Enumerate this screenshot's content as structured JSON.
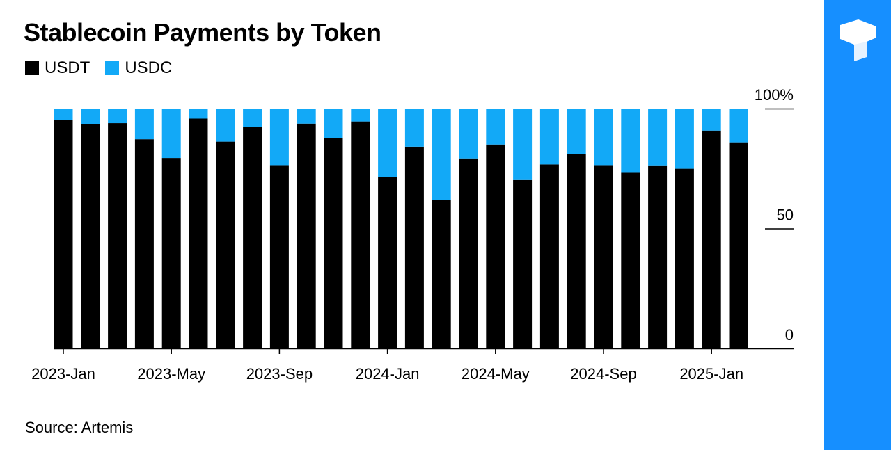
{
  "colors": {
    "usdt": "#000000",
    "usdc": "#12A9F7",
    "brand": "#168FFF"
  },
  "chart_data": {
    "type": "bar",
    "stacked": true,
    "title": "Stablecoin Payments by Token",
    "legend": [
      "USDT",
      "USDC"
    ],
    "legend_placement": "top-left",
    "categories": [
      "2023-Jan",
      "2023-Feb",
      "2023-Mar",
      "2023-Apr",
      "2023-May",
      "2023-Jun",
      "2023-Jul",
      "2023-Aug",
      "2023-Sep",
      "2023-Oct",
      "2023-Nov",
      "2023-Dec",
      "2024-Jan",
      "2024-Feb",
      "2024-Mar",
      "2024-Apr",
      "2024-May",
      "2024-Jun",
      "2024-Jul",
      "2024-Aug",
      "2024-Sep",
      "2024-Oct",
      "2024-Nov",
      "2024-Dec",
      "2025-Jan",
      "2025-Feb"
    ],
    "series": [
      {
        "name": "USDT",
        "values": [
          95.3,
          93.4,
          93.9,
          87.2,
          79.4,
          95.8,
          86.2,
          92.4,
          76.4,
          93.7,
          87.6,
          94.6,
          71.4,
          84.1,
          61.9,
          79.2,
          85,
          70.2,
          76.7,
          81,
          76.4,
          73.2,
          76.3,
          74.9,
          90.8,
          85.9
        ]
      },
      {
        "name": "USDC",
        "values": [
          4.7,
          6.6,
          6.1,
          12.8,
          20.6,
          4.2,
          13.8,
          7.6,
          23.6,
          6.3,
          12.4,
          5.4,
          28.6,
          15.9,
          38.1,
          20.8,
          15,
          29.8,
          23.3,
          19,
          23.6,
          26.8,
          23.7,
          25.1,
          9.2,
          14.1
        ]
      }
    ],
    "x_tick_labels": [
      "2023-Jan",
      "2023-May",
      "2023-Sep",
      "2024-Jan",
      "2024-May",
      "2024-Sep",
      "2025-Jan"
    ],
    "x_tick_indices": [
      0,
      4,
      8,
      12,
      16,
      20,
      24
    ],
    "y_ticks": [
      {
        "value": 0,
        "label": "0"
      },
      {
        "value": 50,
        "label": "50"
      },
      {
        "value": 100,
        "label": "100%"
      }
    ],
    "ylim": [
      0,
      100
    ],
    "y_axis_side": "right",
    "grid": false
  },
  "source": "Source: Artemis",
  "brand": {
    "logo_icon": "t-logo-icon"
  }
}
